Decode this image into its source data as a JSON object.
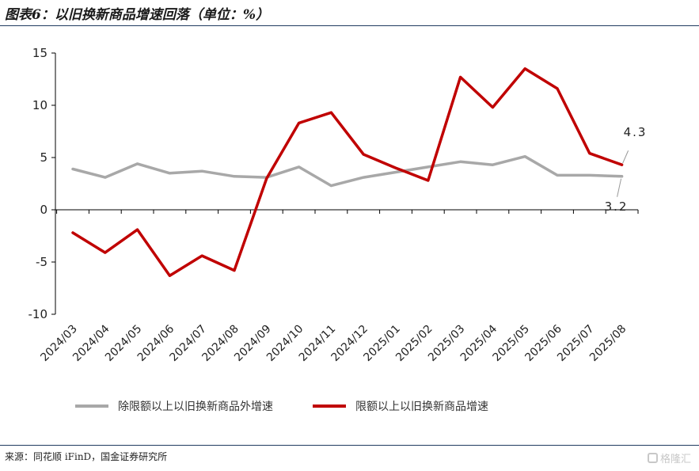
{
  "header": {
    "title": "图表6：以旧换新商品增速回落（单位：%）"
  },
  "footer": {
    "source": "来源：同花顺 iFinD，国金证券研究所",
    "watermark": "格隆汇"
  },
  "colors": {
    "series_gray": "#a8a8a8",
    "series_red": "#c00000"
  },
  "chart_data": {
    "type": "line",
    "title": "",
    "xlabel": "",
    "ylabel": "",
    "ylim": [
      -10,
      15
    ],
    "yticks": [
      -10,
      -5,
      0,
      5,
      10,
      15
    ],
    "grid": false,
    "legend_position": "bottom",
    "categories": [
      "2024/03",
      "2024/04",
      "2024/05",
      "2024/06",
      "2024/07",
      "2024/08",
      "2024/09",
      "2024/10",
      "2024/11",
      "2024/12",
      "2025/01",
      "2025/02",
      "2025/03",
      "2025/04",
      "2025/05",
      "2025/06",
      "2025/07",
      "2025/08"
    ],
    "series": [
      {
        "name": "除限额以上以旧换新商品外增速",
        "color": "#a8a8a8",
        "values": [
          3.9,
          3.1,
          4.4,
          3.5,
          3.7,
          3.2,
          3.1,
          4.1,
          2.3,
          3.1,
          3.6,
          4.1,
          4.6,
          4.3,
          5.1,
          3.3,
          3.3,
          3.2
        ]
      },
      {
        "name": "限额以上以旧换新商品增速",
        "color": "#c00000",
        "values": [
          -2.2,
          -4.1,
          -1.9,
          -6.3,
          -4.4,
          -5.8,
          3.0,
          8.3,
          9.3,
          5.3,
          4.0,
          2.8,
          12.7,
          9.8,
          13.5,
          11.6,
          5.4,
          4.3
        ]
      }
    ],
    "annotations": [
      {
        "text": "4.3",
        "series": 1,
        "index": 17
      },
      {
        "text": "3.2",
        "series": 0,
        "index": 17
      }
    ]
  }
}
